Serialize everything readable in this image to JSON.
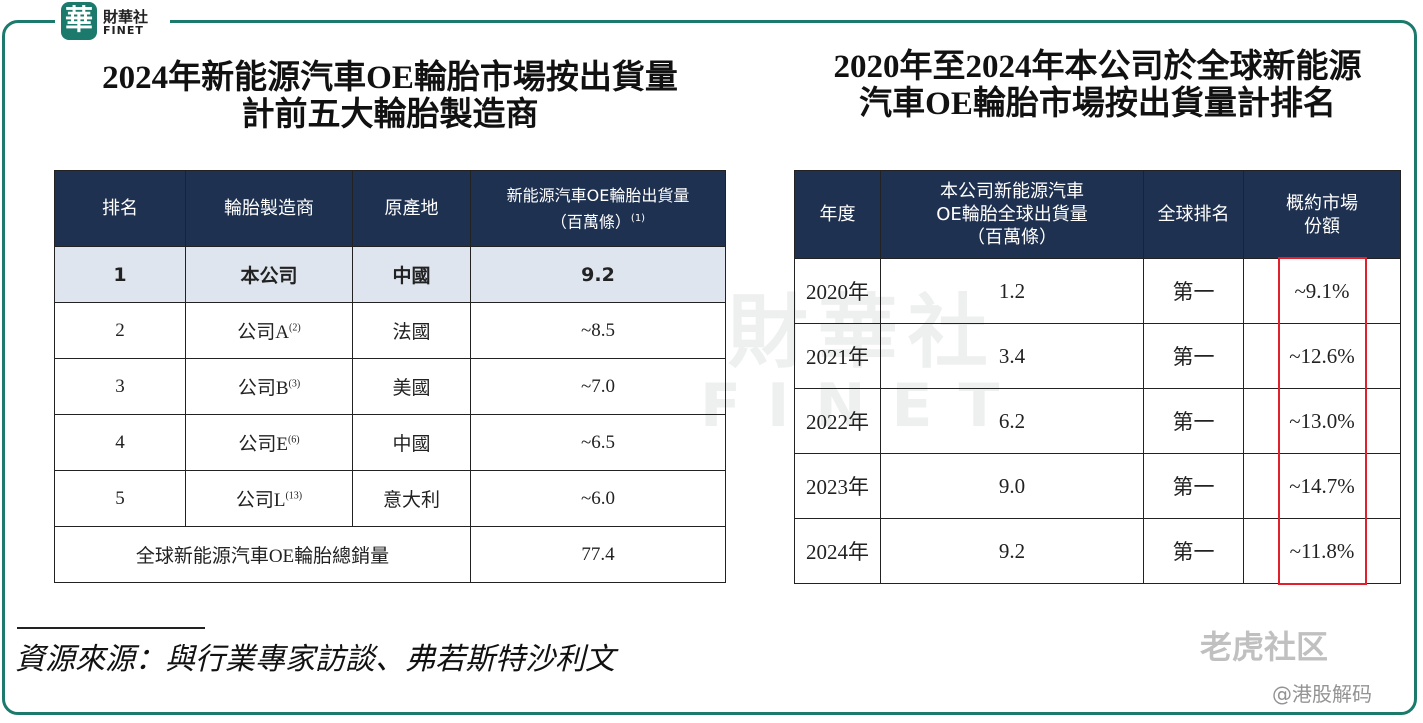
{
  "logo": {
    "mark": "華",
    "name": "財華社",
    "latin": "FINET"
  },
  "watermark": {
    "name": "財華社",
    "latin": "FINET"
  },
  "left": {
    "title": [
      "2024年新能源汽車OE輪胎市場按出貨量",
      "計前五大輪胎製造商"
    ],
    "headers": [
      "排名",
      "輪胎製造商",
      "原產地",
      {
        "lines": [
          "新能源汽車OE輪胎出貨量",
          "（百萬條）"
        ],
        "note": "(1)"
      }
    ],
    "rows": [
      {
        "rank": "1",
        "maker": "本公司",
        "note": null,
        "origin": "中國",
        "volume": "9.2"
      },
      {
        "rank": "2",
        "maker": "公司A",
        "note": "(2)",
        "origin": "法國",
        "volume": "~8.5"
      },
      {
        "rank": "3",
        "maker": "公司B",
        "note": "(3)",
        "origin": "美國",
        "volume": "~7.0"
      },
      {
        "rank": "4",
        "maker": "公司E",
        "note": "(6)",
        "origin": "中國",
        "volume": "~6.5"
      },
      {
        "rank": "5",
        "maker": "公司L",
        "note": "(13)",
        "origin": "意大利",
        "volume": "~6.0"
      }
    ],
    "total": {
      "label": "全球新能源汽車OE輪胎總銷量",
      "value": "77.4"
    }
  },
  "right": {
    "title": [
      "2020年至2024年本公司於全球新能源",
      "汽車OE輪胎市場按出貨量計排名"
    ],
    "headers": [
      "年度",
      [
        "本公司新能源汽車",
        "OE輪胎全球出貨量",
        "（百萬條）"
      ],
      "全球排名",
      [
        "概約市場",
        "份額"
      ]
    ],
    "rows": [
      [
        "2020年",
        "1.2",
        "第一",
        "~9.1%"
      ],
      [
        "2021年",
        "3.4",
        "第一",
        "~12.6%"
      ],
      [
        "2022年",
        "6.2",
        "第一",
        "~13.0%"
      ],
      [
        "2023年",
        "9.0",
        "第一",
        "~14.7%"
      ],
      [
        "2024年",
        "9.2",
        "第一",
        "~11.8%"
      ]
    ]
  },
  "source": "資源來源：與行業專家訪談、弗若斯特沙利文",
  "credits": {
    "brand": "老虎社区",
    "handle": "@港股解码"
  }
}
